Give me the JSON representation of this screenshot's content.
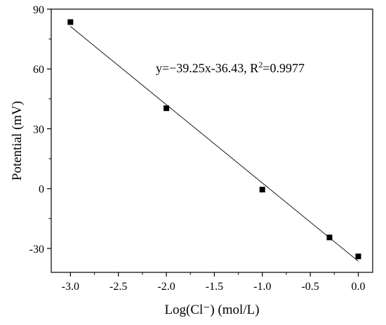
{
  "chart_data": {
    "type": "scatter",
    "xlabel": "Log(Cl⁻) (mol/L)",
    "ylabel": "Potential (mV)",
    "xlim": [
      -3.2,
      0.15
    ],
    "ylim": [
      -42,
      90
    ],
    "x_ticks": [
      -3.0,
      -2.5,
      -2.0,
      -1.5,
      -1.0,
      -0.5,
      0.0
    ],
    "x_tick_labels": [
      "-3.0",
      "-2.5",
      "-2.0",
      "-1.5",
      "-1.0",
      "-0.5",
      "0.0"
    ],
    "y_ticks": [
      -30,
      0,
      30,
      60,
      90
    ],
    "y_tick_labels": [
      "-30",
      "0",
      "30",
      "60",
      "90"
    ],
    "grid": false,
    "series": [
      {
        "marker": "square",
        "color": "#000000",
        "points": [
          {
            "x": -3.0,
            "y": 83.5
          },
          {
            "x": -2.0,
            "y": 40.3
          },
          {
            "x": -1.0,
            "y": -0.5
          },
          {
            "x": -0.3,
            "y": -24.5
          },
          {
            "x": 0.0,
            "y": -34.0
          }
        ]
      }
    ],
    "fit_line": {
      "slope": -39.25,
      "intercept": -36.43,
      "x_range": [
        -3.0,
        0.0
      ],
      "color": "#000000"
    },
    "annotation": {
      "main": "y=−39.25x-36.43, R",
      "sup": "2",
      "tail": "=0.9977"
    }
  }
}
